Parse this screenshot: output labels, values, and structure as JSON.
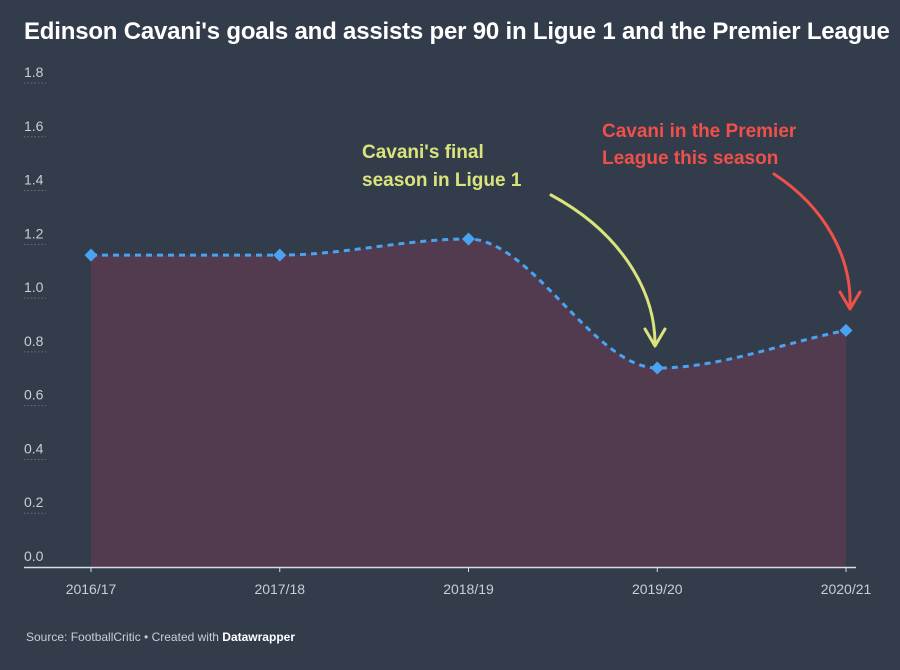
{
  "title": "Edinson Cavani's goals and assists per 90 in Ligue 1 and the Premier League",
  "footer": {
    "source": "Source: FootballCritic",
    "separator": " • ",
    "created_with": "Created with ",
    "brand": "Datawrapper"
  },
  "colors": {
    "background": "#333c4b",
    "area_fill": "#523a4f",
    "line": "#4aa3f0",
    "annotation_ligue1": "#dbe47c",
    "annotation_pl": "#f0504a",
    "grid": "#6b7280",
    "axis_text": "#c9ced6"
  },
  "annotations": [
    {
      "lines": [
        "Cavani's final",
        "season in Ligue 1"
      ],
      "color": "#dbe47c",
      "target": "2019/20"
    },
    {
      "lines": [
        "Cavani in the Premier",
        "League this season"
      ],
      "color": "#f0504a",
      "target": "2020/21"
    }
  ],
  "chart_data": {
    "type": "area",
    "title": "Edinson Cavani's goals and assists per 90 in Ligue 1 and the Premier League",
    "categories": [
      "2016/17",
      "2017/18",
      "2018/19",
      "2019/20",
      "2020/21"
    ],
    "series": [
      {
        "values": [
          1.16,
          1.16,
          1.22,
          0.74,
          0.88
        ]
      }
    ],
    "ylim": [
      0,
      1.8
    ],
    "yticks": [
      "0.0",
      "0.2",
      "0.4",
      "0.6",
      "0.8",
      "1.0",
      "1.2",
      "1.4",
      "1.6",
      "1.8"
    ],
    "grid": false,
    "markers": "diamond",
    "line_style": "dashed"
  }
}
